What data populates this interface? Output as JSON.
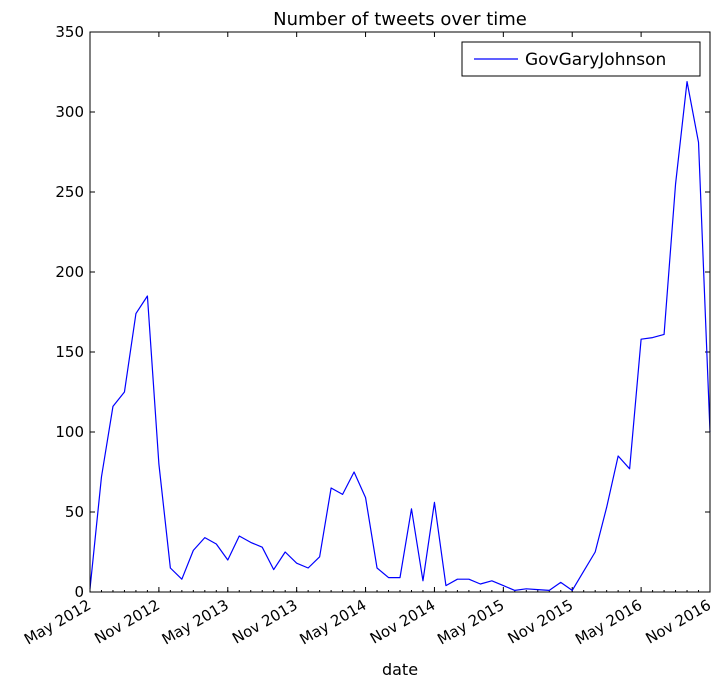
{
  "chart_data": {
    "type": "line",
    "title": "Number of tweets over time",
    "xlabel": "date",
    "ylabel": "",
    "ylim": [
      0,
      350
    ],
    "yticks": [
      0,
      50,
      100,
      150,
      200,
      250,
      300,
      350
    ],
    "xlim": [
      "2012-05",
      "2016-11"
    ],
    "xticks": [
      {
        "date": "2012-05",
        "label": "May 2012"
      },
      {
        "date": "2012-11",
        "label": "Nov 2012"
      },
      {
        "date": "2013-05",
        "label": "May 2013"
      },
      {
        "date": "2013-11",
        "label": "Nov 2013"
      },
      {
        "date": "2014-05",
        "label": "May 2014"
      },
      {
        "date": "2014-11",
        "label": "Nov 2014"
      },
      {
        "date": "2015-05",
        "label": "May 2015"
      },
      {
        "date": "2015-11",
        "label": "Nov 2015"
      },
      {
        "date": "2016-05",
        "label": "May 2016"
      },
      {
        "date": "2016-11",
        "label": "Nov 2016"
      }
    ],
    "grid": false,
    "legend_position": "top-right",
    "series": [
      {
        "name": "GovGaryJohnson",
        "color": "#0000ff",
        "x": [
          "2012-05",
          "2012-06",
          "2012-07",
          "2012-08",
          "2012-09",
          "2012-10",
          "2012-11",
          "2012-12",
          "2013-01",
          "2013-02",
          "2013-03",
          "2013-04",
          "2013-05",
          "2013-06",
          "2013-07",
          "2013-08",
          "2013-09",
          "2013-10",
          "2013-11",
          "2013-12",
          "2014-01",
          "2014-02",
          "2014-03",
          "2014-04",
          "2014-05",
          "2014-06",
          "2014-07",
          "2014-08",
          "2014-09",
          "2014-10",
          "2014-11",
          "2014-12",
          "2015-01",
          "2015-02",
          "2015-03",
          "2015-04",
          "2015-05",
          "2015-06",
          "2015-07",
          "2015-08",
          "2015-09",
          "2015-10",
          "2015-11",
          "2015-12",
          "2016-01",
          "2016-02",
          "2016-03",
          "2016-04",
          "2016-05",
          "2016-06",
          "2016-07",
          "2016-08",
          "2016-09",
          "2016-10",
          "2016-11"
        ],
        "values": [
          2,
          72,
          116,
          125,
          174,
          185,
          80,
          15,
          8,
          26,
          34,
          30,
          20,
          35,
          31,
          28,
          14,
          25,
          18,
          15,
          22,
          65,
          61,
          75,
          59,
          15,
          9,
          9,
          52,
          7,
          56,
          4,
          8,
          8,
          5,
          7,
          4,
          1,
          2,
          1.5,
          1,
          6,
          1,
          13,
          25,
          53,
          85,
          77,
          158,
          159,
          161,
          255,
          319,
          281,
          100
        ]
      }
    ]
  }
}
